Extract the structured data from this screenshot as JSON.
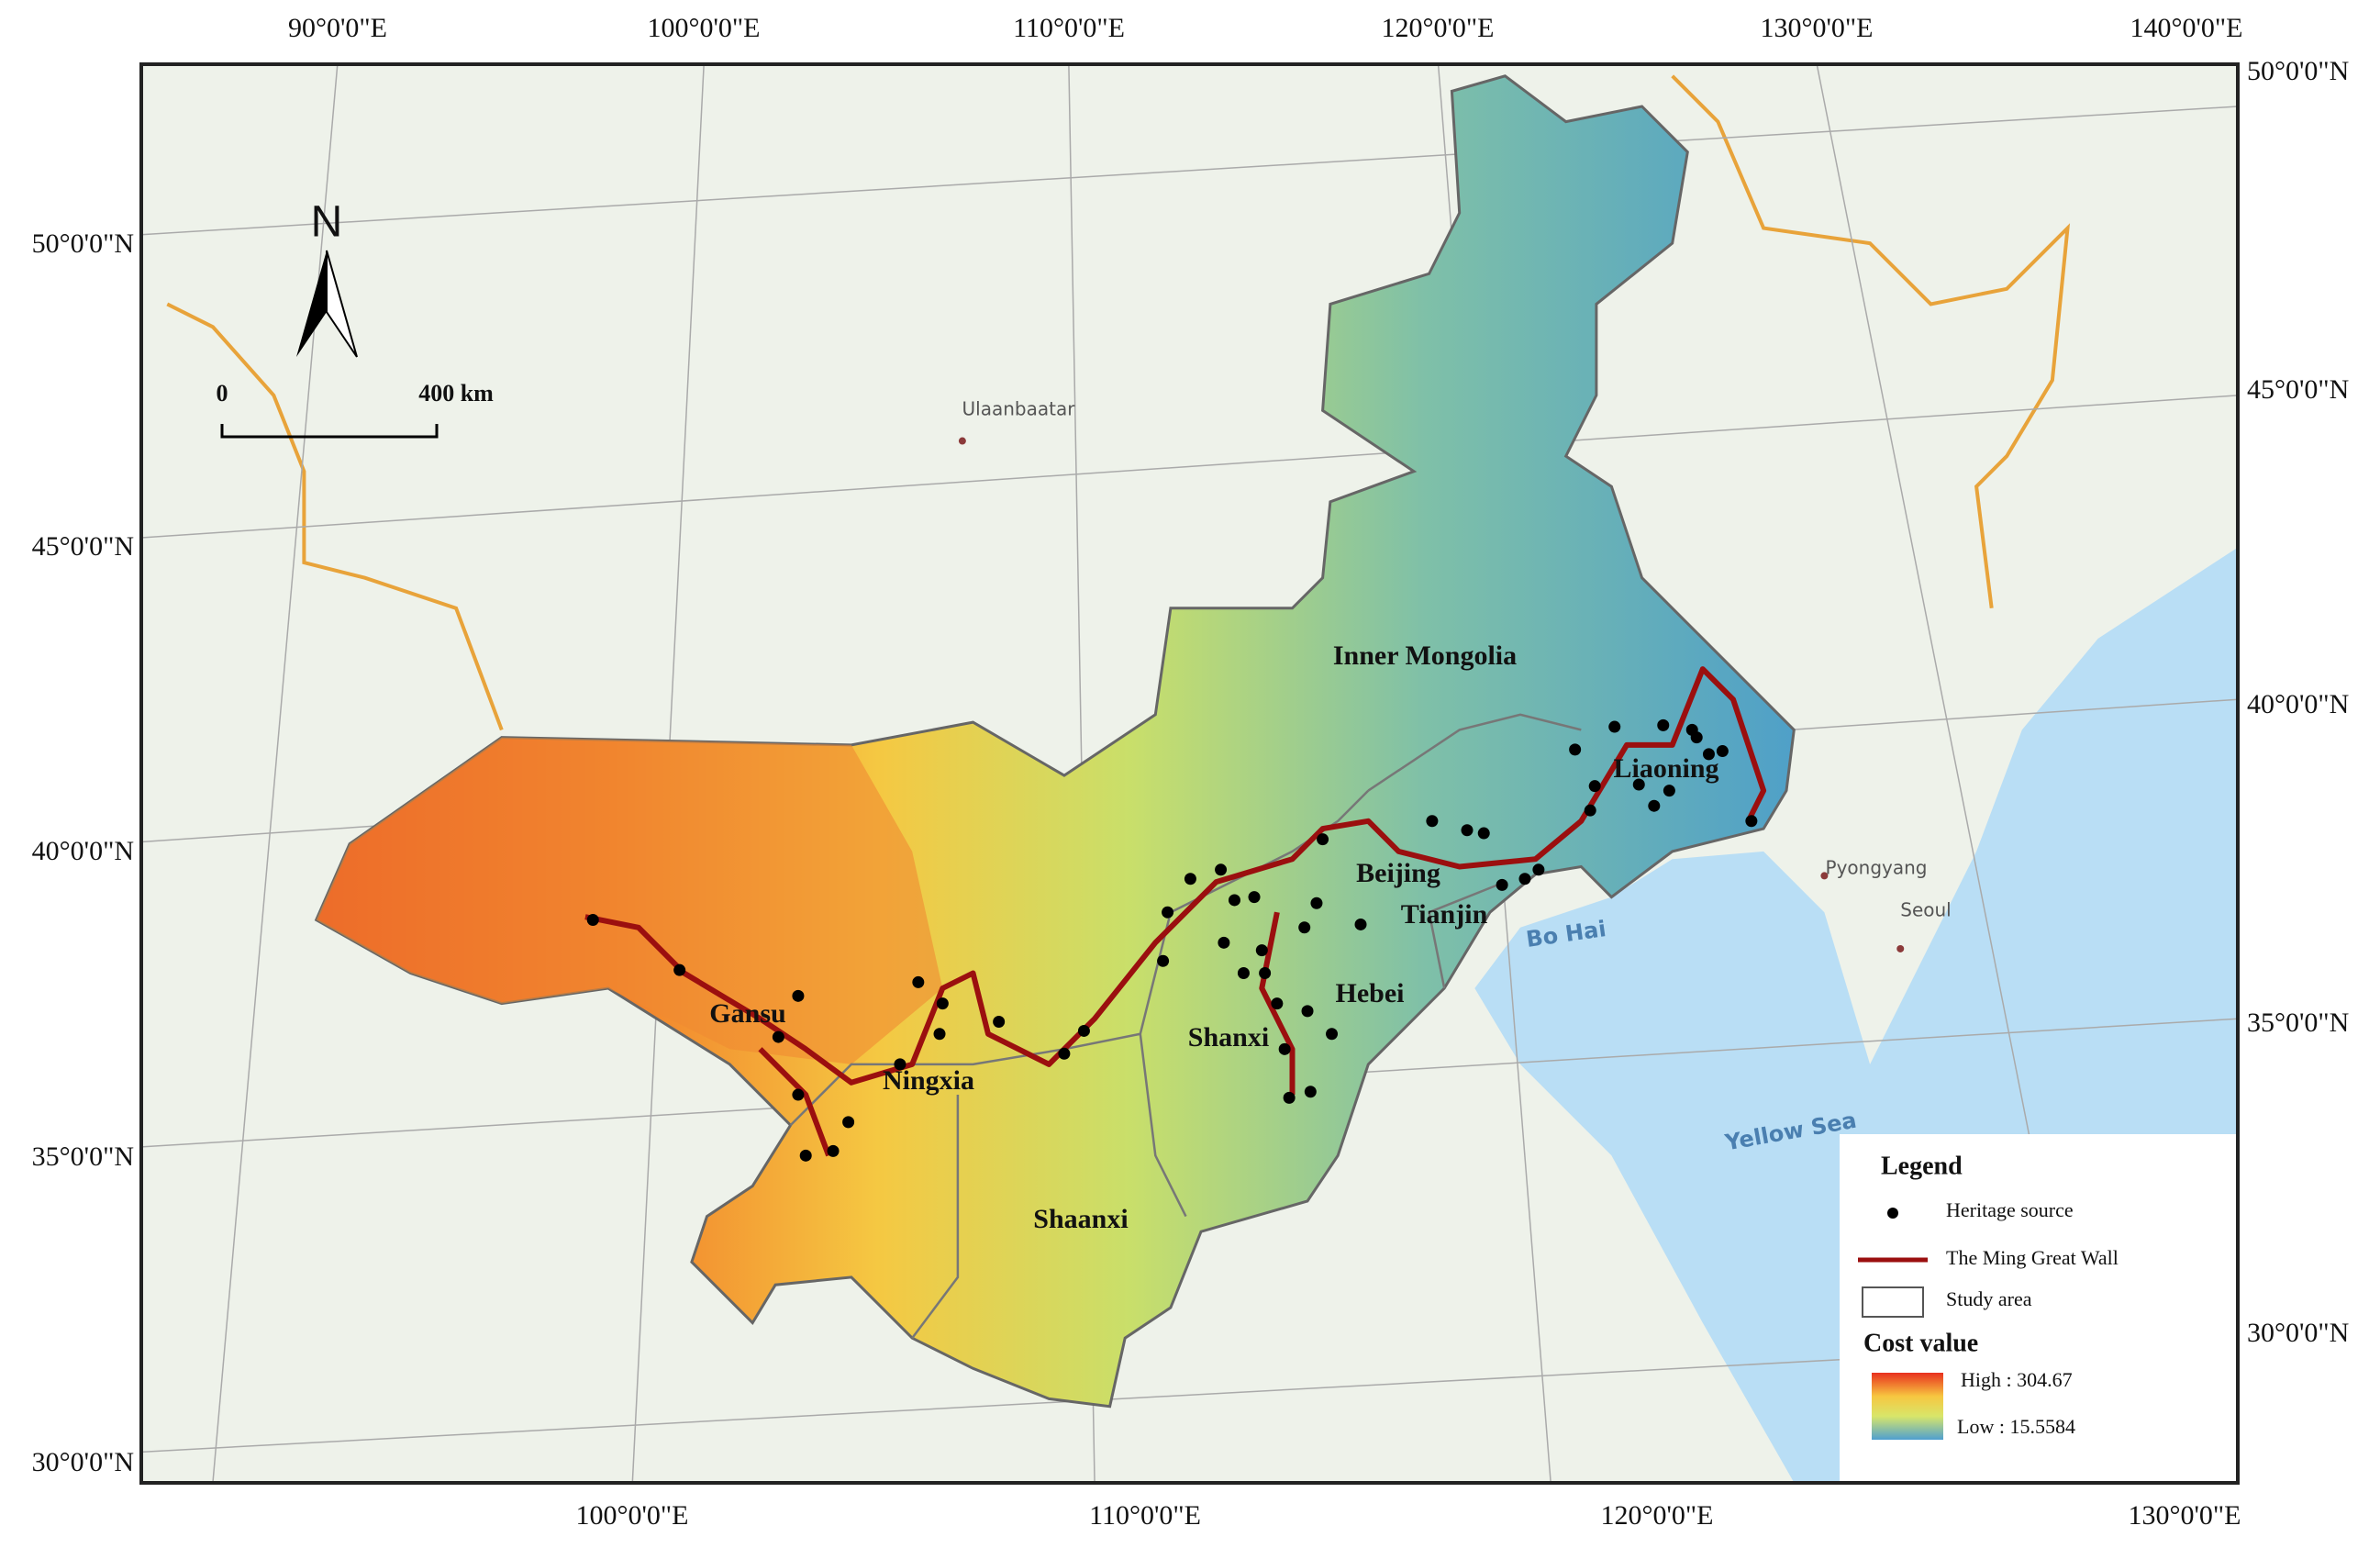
{
  "map": {
    "north_label": "N",
    "scale_bar": {
      "start": "0",
      "end": "400 km"
    },
    "top_labels": [
      "90°0'0\"E",
      "100°0'0\"E",
      "110°0'0\"E",
      "120°0'0\"E",
      "130°0'0\"E",
      "140°0'0\"E"
    ],
    "bottom_labels": [
      "100°0'0\"E",
      "110°0'0\"E",
      "120°0'0\"E",
      "130°0'0\"E"
    ],
    "left_labels": [
      "50°0'0\"N",
      "45°0'0\"N",
      "40°0'0\"N",
      "35°0'0\"N",
      "30°0'0\"N"
    ],
    "right_labels": [
      "50°0'0\"N",
      "45°0'0\"N",
      "40°0'0\"N",
      "35°0'0\"N",
      "30°0'0\"N"
    ],
    "regions": [
      "Inner Mongolia",
      "Liaoning",
      "Beijing",
      "Tianjin",
      "Hebei",
      "Shanxi",
      "Gansu",
      "Ningxia",
      "Shaanxi"
    ],
    "cities": [
      "Ulaanbaatar",
      "Pyongyang",
      "Seoul"
    ],
    "seas": [
      "Bo Hai",
      "Yellow Sea"
    ],
    "legend": {
      "title": "Legend",
      "items": [
        "Heritage source",
        "The Ming Great Wall",
        "Study area"
      ],
      "cost_title": "Cost value",
      "high": "High : 304.67",
      "low": "Low : 15.5584"
    }
  }
}
